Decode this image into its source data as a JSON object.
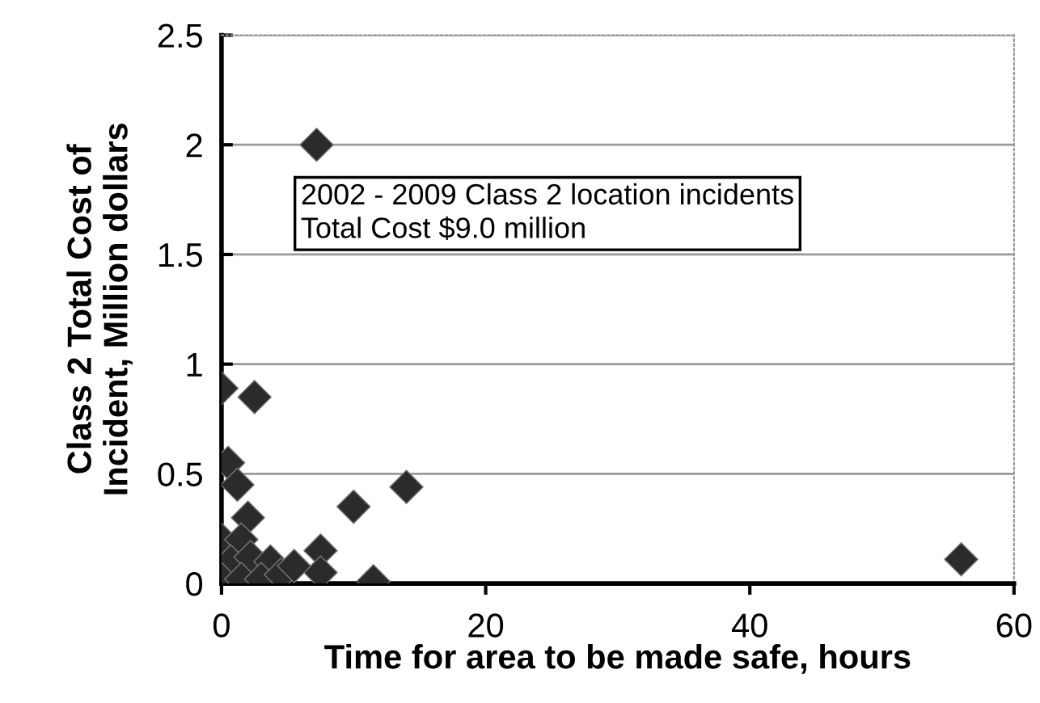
{
  "chart_data": {
    "type": "scatter",
    "xlabel": "Time for area to be made safe, hours",
    "ylabel": "Class 2 Total Cost of\nIncident, Million dollars",
    "annotations": [
      "2002 - 2009 Class 2 location incidents\nTotal Cost $9.0 million"
    ],
    "series": [
      {
        "color": "#2b2b2b",
        "x": [
          7.2,
          56,
          14,
          10,
          11.5,
          0,
          2.5,
          0.5,
          1.2,
          7.5,
          7.5,
          2,
          0,
          1.5,
          0.7,
          2.2,
          3.7,
          0,
          1.5,
          3,
          4.5,
          5.5
        ],
        "values": [
          2.0,
          0.11,
          0.44,
          0.35,
          0.01,
          0.89,
          0.85,
          0.55,
          0.45,
          0.15,
          0.05,
          0.3,
          0.2,
          0.2,
          0.1,
          0.12,
          0.1,
          0.02,
          0.02,
          0.02,
          0.04,
          0.08
        ]
      }
    ],
    "marker": "diamond",
    "xlim": [
      0,
      60
    ],
    "ylim": [
      0,
      2.5
    ],
    "xticks": [
      0,
      20,
      40,
      60
    ],
    "yticks": [
      0,
      0.5,
      1,
      1.5,
      2,
      2.5
    ],
    "grid": "y"
  }
}
